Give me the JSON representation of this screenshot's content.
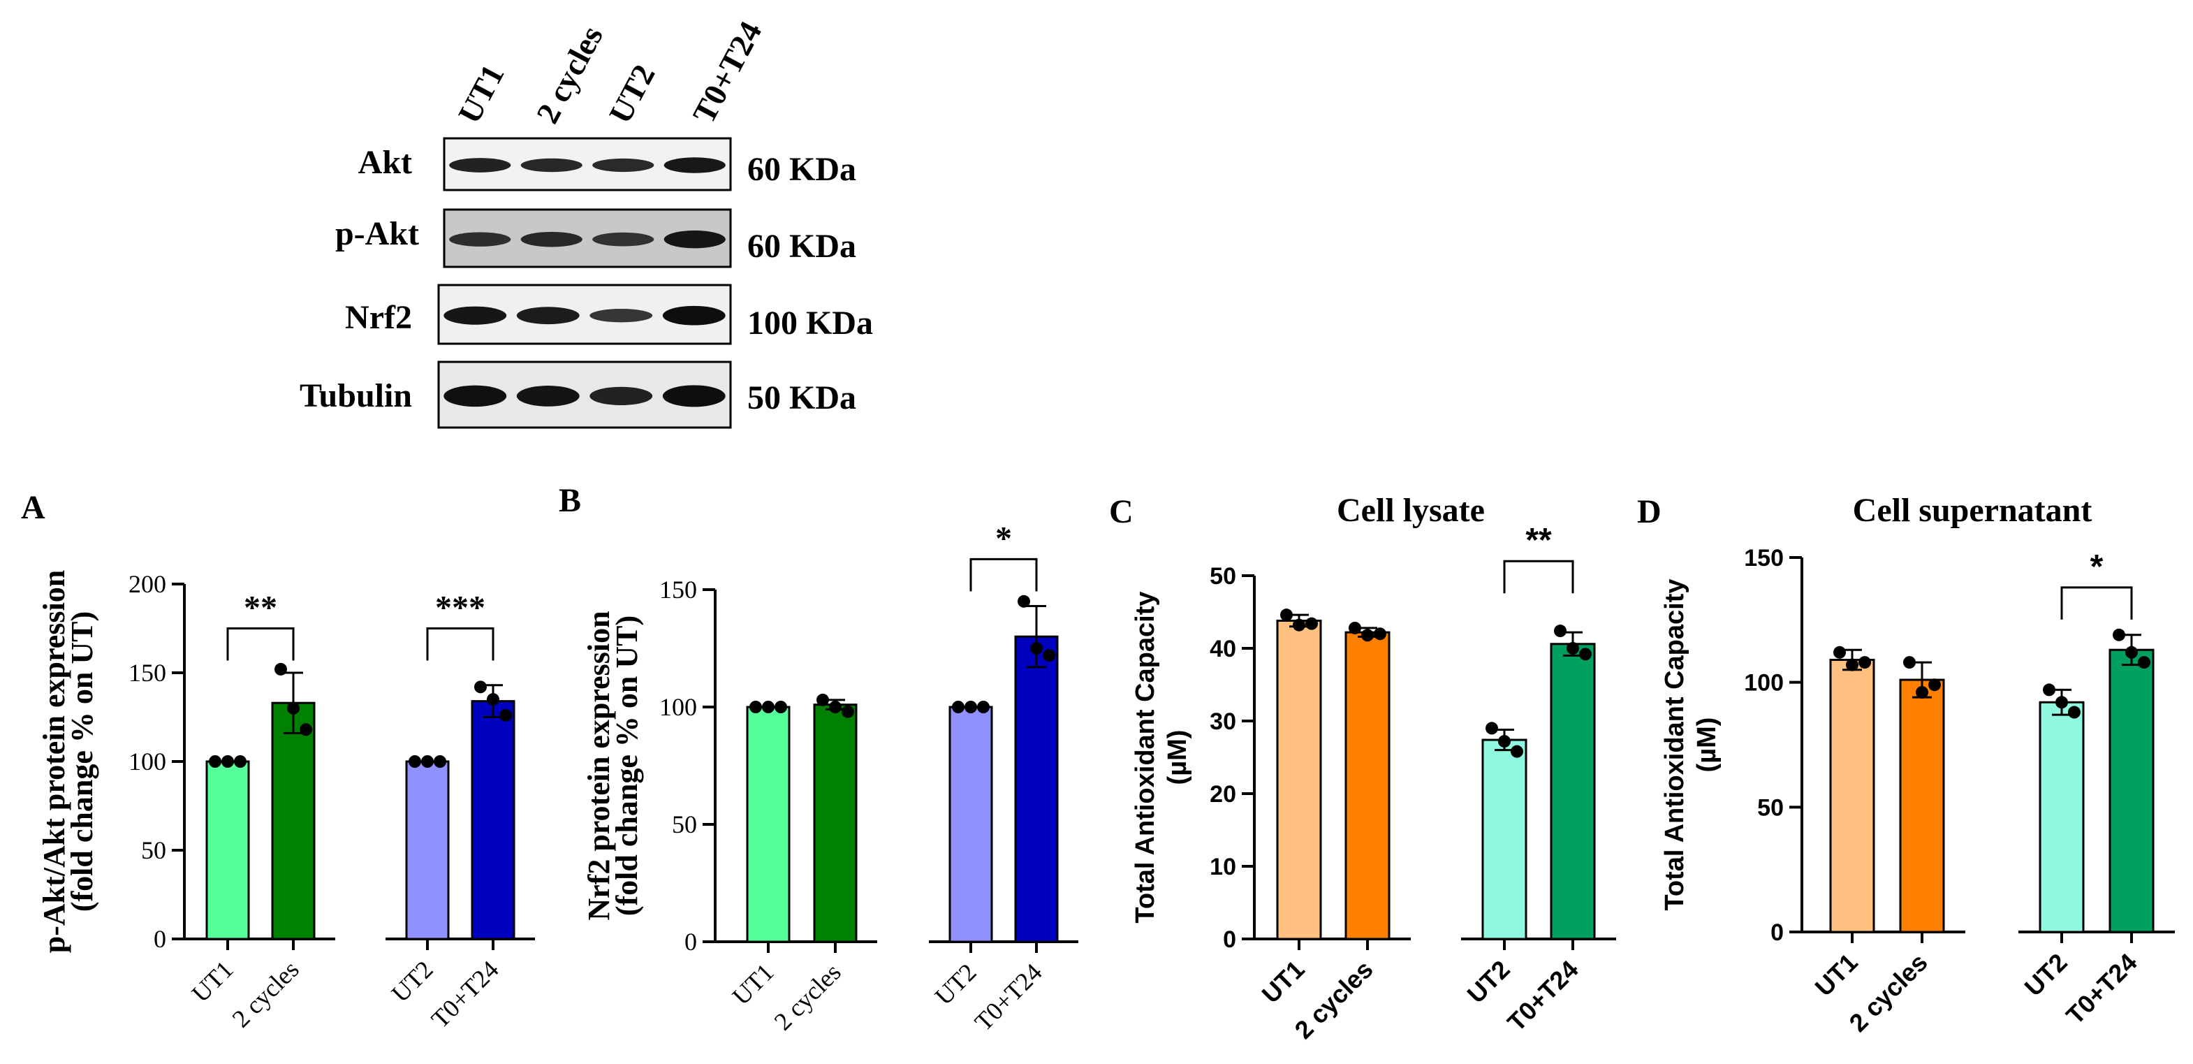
{
  "blot": {
    "lanes": [
      "UT1",
      "2 cycles",
      "UT2",
      "T0+T24"
    ],
    "rows": [
      {
        "protein": "Akt",
        "mw": "60 KDa",
        "intensity": [
          0.7,
          0.62,
          0.6,
          0.82
        ]
      },
      {
        "protein": "p-Akt",
        "mw": "60 KDa",
        "intensity": [
          0.55,
          0.62,
          0.5,
          0.85
        ]
      },
      {
        "protein": "Nrf2",
        "mw": "100 KDa",
        "intensity": [
          0.85,
          0.78,
          0.45,
          0.95
        ]
      },
      {
        "protein": "Tubulin",
        "mw": "50 KDa",
        "intensity": [
          0.92,
          0.88,
          0.7,
          0.95
        ]
      }
    ]
  },
  "chart_data": [
    {
      "panel": "A",
      "type": "bar",
      "title": "",
      "ylabel_lines": [
        "p-Akt/Akt protein expression",
        "(fold change % on UT)"
      ],
      "ylim": [
        0,
        200
      ],
      "yticks": [
        "0",
        "50",
        "100",
        "150",
        "200"
      ],
      "categories": [
        "UT1",
        "2 cycles",
        "UT2",
        "T0+T24"
      ],
      "values": [
        100,
        133,
        100,
        134
      ],
      "errors": [
        0,
        17,
        0,
        9
      ],
      "points": [
        [
          100,
          100,
          100
        ],
        [
          152,
          130,
          118
        ],
        [
          100,
          100,
          100
        ],
        [
          142,
          135,
          126
        ]
      ],
      "colors": [
        "#55ff99",
        "#008000",
        "#9090ff",
        "#0000c0"
      ],
      "significance": [
        {
          "from": 0,
          "to": 1,
          "label": "**",
          "y": 175
        },
        {
          "from": 2,
          "to": 3,
          "label": "***",
          "y": 175
        }
      ]
    },
    {
      "panel": "B",
      "type": "bar",
      "title": "",
      "ylabel_lines": [
        "Nrf2 protein expression",
        "(fold change % on UT)"
      ],
      "ylim": [
        0,
        150
      ],
      "yticks": [
        "0",
        "50",
        "100",
        "150"
      ],
      "categories": [
        "UT1",
        "2 cycles",
        "UT2",
        "T0+T24"
      ],
      "values": [
        100,
        101,
        100,
        130
      ],
      "errors": [
        0,
        2,
        0,
        13
      ],
      "points": [
        [
          100,
          100,
          100
        ],
        [
          103,
          100,
          98
        ],
        [
          100,
          100,
          100
        ],
        [
          145,
          125,
          122
        ]
      ],
      "colors": [
        "#55ff99",
        "#008000",
        "#9090ff",
        "#0000c0"
      ],
      "significance": [
        {
          "from": 2,
          "to": 3,
          "label": "*",
          "y": 163
        }
      ]
    },
    {
      "panel": "C",
      "type": "bar",
      "title": "Cell lysate",
      "ylabel_lines": [
        "Total Antioxidant Capacity",
        "(µM)"
      ],
      "ylim": [
        0,
        50
      ],
      "yticks": [
        "0",
        "10",
        "20",
        "30",
        "40",
        "50"
      ],
      "categories": [
        "UT1",
        "2 cycles",
        "UT2",
        "T0+T24"
      ],
      "values": [
        43.8,
        42.2,
        27.4,
        40.6
      ],
      "errors": [
        0.8,
        0.6,
        1.4,
        1.6
      ],
      "points": [
        [
          44.6,
          43.2,
          43.4
        ],
        [
          42.8,
          41.8,
          42.0
        ],
        [
          29.0,
          27.2,
          25.8
        ],
        [
          42.4,
          40.0,
          39.2
        ]
      ],
      "colors": [
        "#ffc080",
        "#ff8000",
        "#90f8e0",
        "#00a060"
      ],
      "significance": [
        {
          "from": 2,
          "to": 3,
          "label": "**",
          "y": 52
        }
      ]
    },
    {
      "panel": "D",
      "type": "bar",
      "title": "Cell supernatant",
      "ylabel_lines": [
        "Total Antioxidant Capacity",
        "(µM)"
      ],
      "ylim": [
        0,
        150
      ],
      "yticks": [
        "0",
        "50",
        "100",
        "150"
      ],
      "categories": [
        "UT1",
        "2 cycles",
        "UT2",
        "T0+T24"
      ],
      "values": [
        109,
        101,
        92,
        113
      ],
      "errors": [
        4,
        7,
        5,
        6
      ],
      "points": [
        [
          112,
          107,
          108
        ],
        [
          108,
          96,
          99
        ],
        [
          97,
          92,
          88
        ],
        [
          119,
          112,
          108
        ]
      ],
      "colors": [
        "#ffc080",
        "#ff8000",
        "#90f8e0",
        "#00a060"
      ],
      "significance": [
        {
          "from": 2,
          "to": 3,
          "label": "*",
          "y": 138
        }
      ]
    }
  ]
}
